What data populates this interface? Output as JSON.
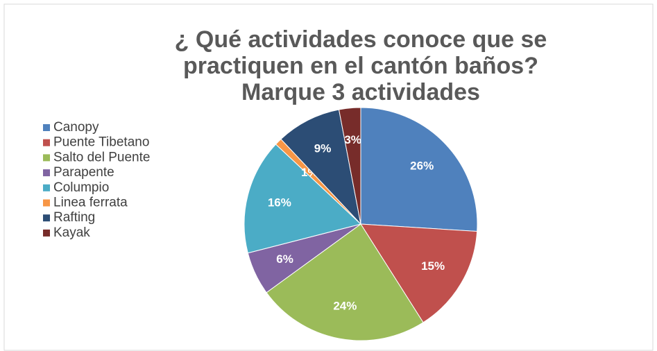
{
  "chart_data": {
    "type": "pie",
    "title": "¿ Qué actividades conoce que se practiquen en el cantón baños? Marque 3 actividades",
    "categories": [
      "Canopy",
      "Puente Tibetano",
      "Salto del Puente",
      "Parapente",
      "Columpio",
      "Linea ferrata",
      "Rafting",
      "Kayak"
    ],
    "values": [
      26,
      15,
      24,
      6,
      16,
      1,
      9,
      3
    ],
    "value_labels": [
      "26%",
      "15%",
      "24%",
      "6%",
      "16%",
      "1%",
      "9%",
      "3%"
    ],
    "colors": [
      "#4f81bd",
      "#c0504d",
      "#9bbb59",
      "#8064a2",
      "#4bacc6",
      "#f79646",
      "#2c4d75",
      "#772c2a"
    ],
    "legend": "left"
  }
}
